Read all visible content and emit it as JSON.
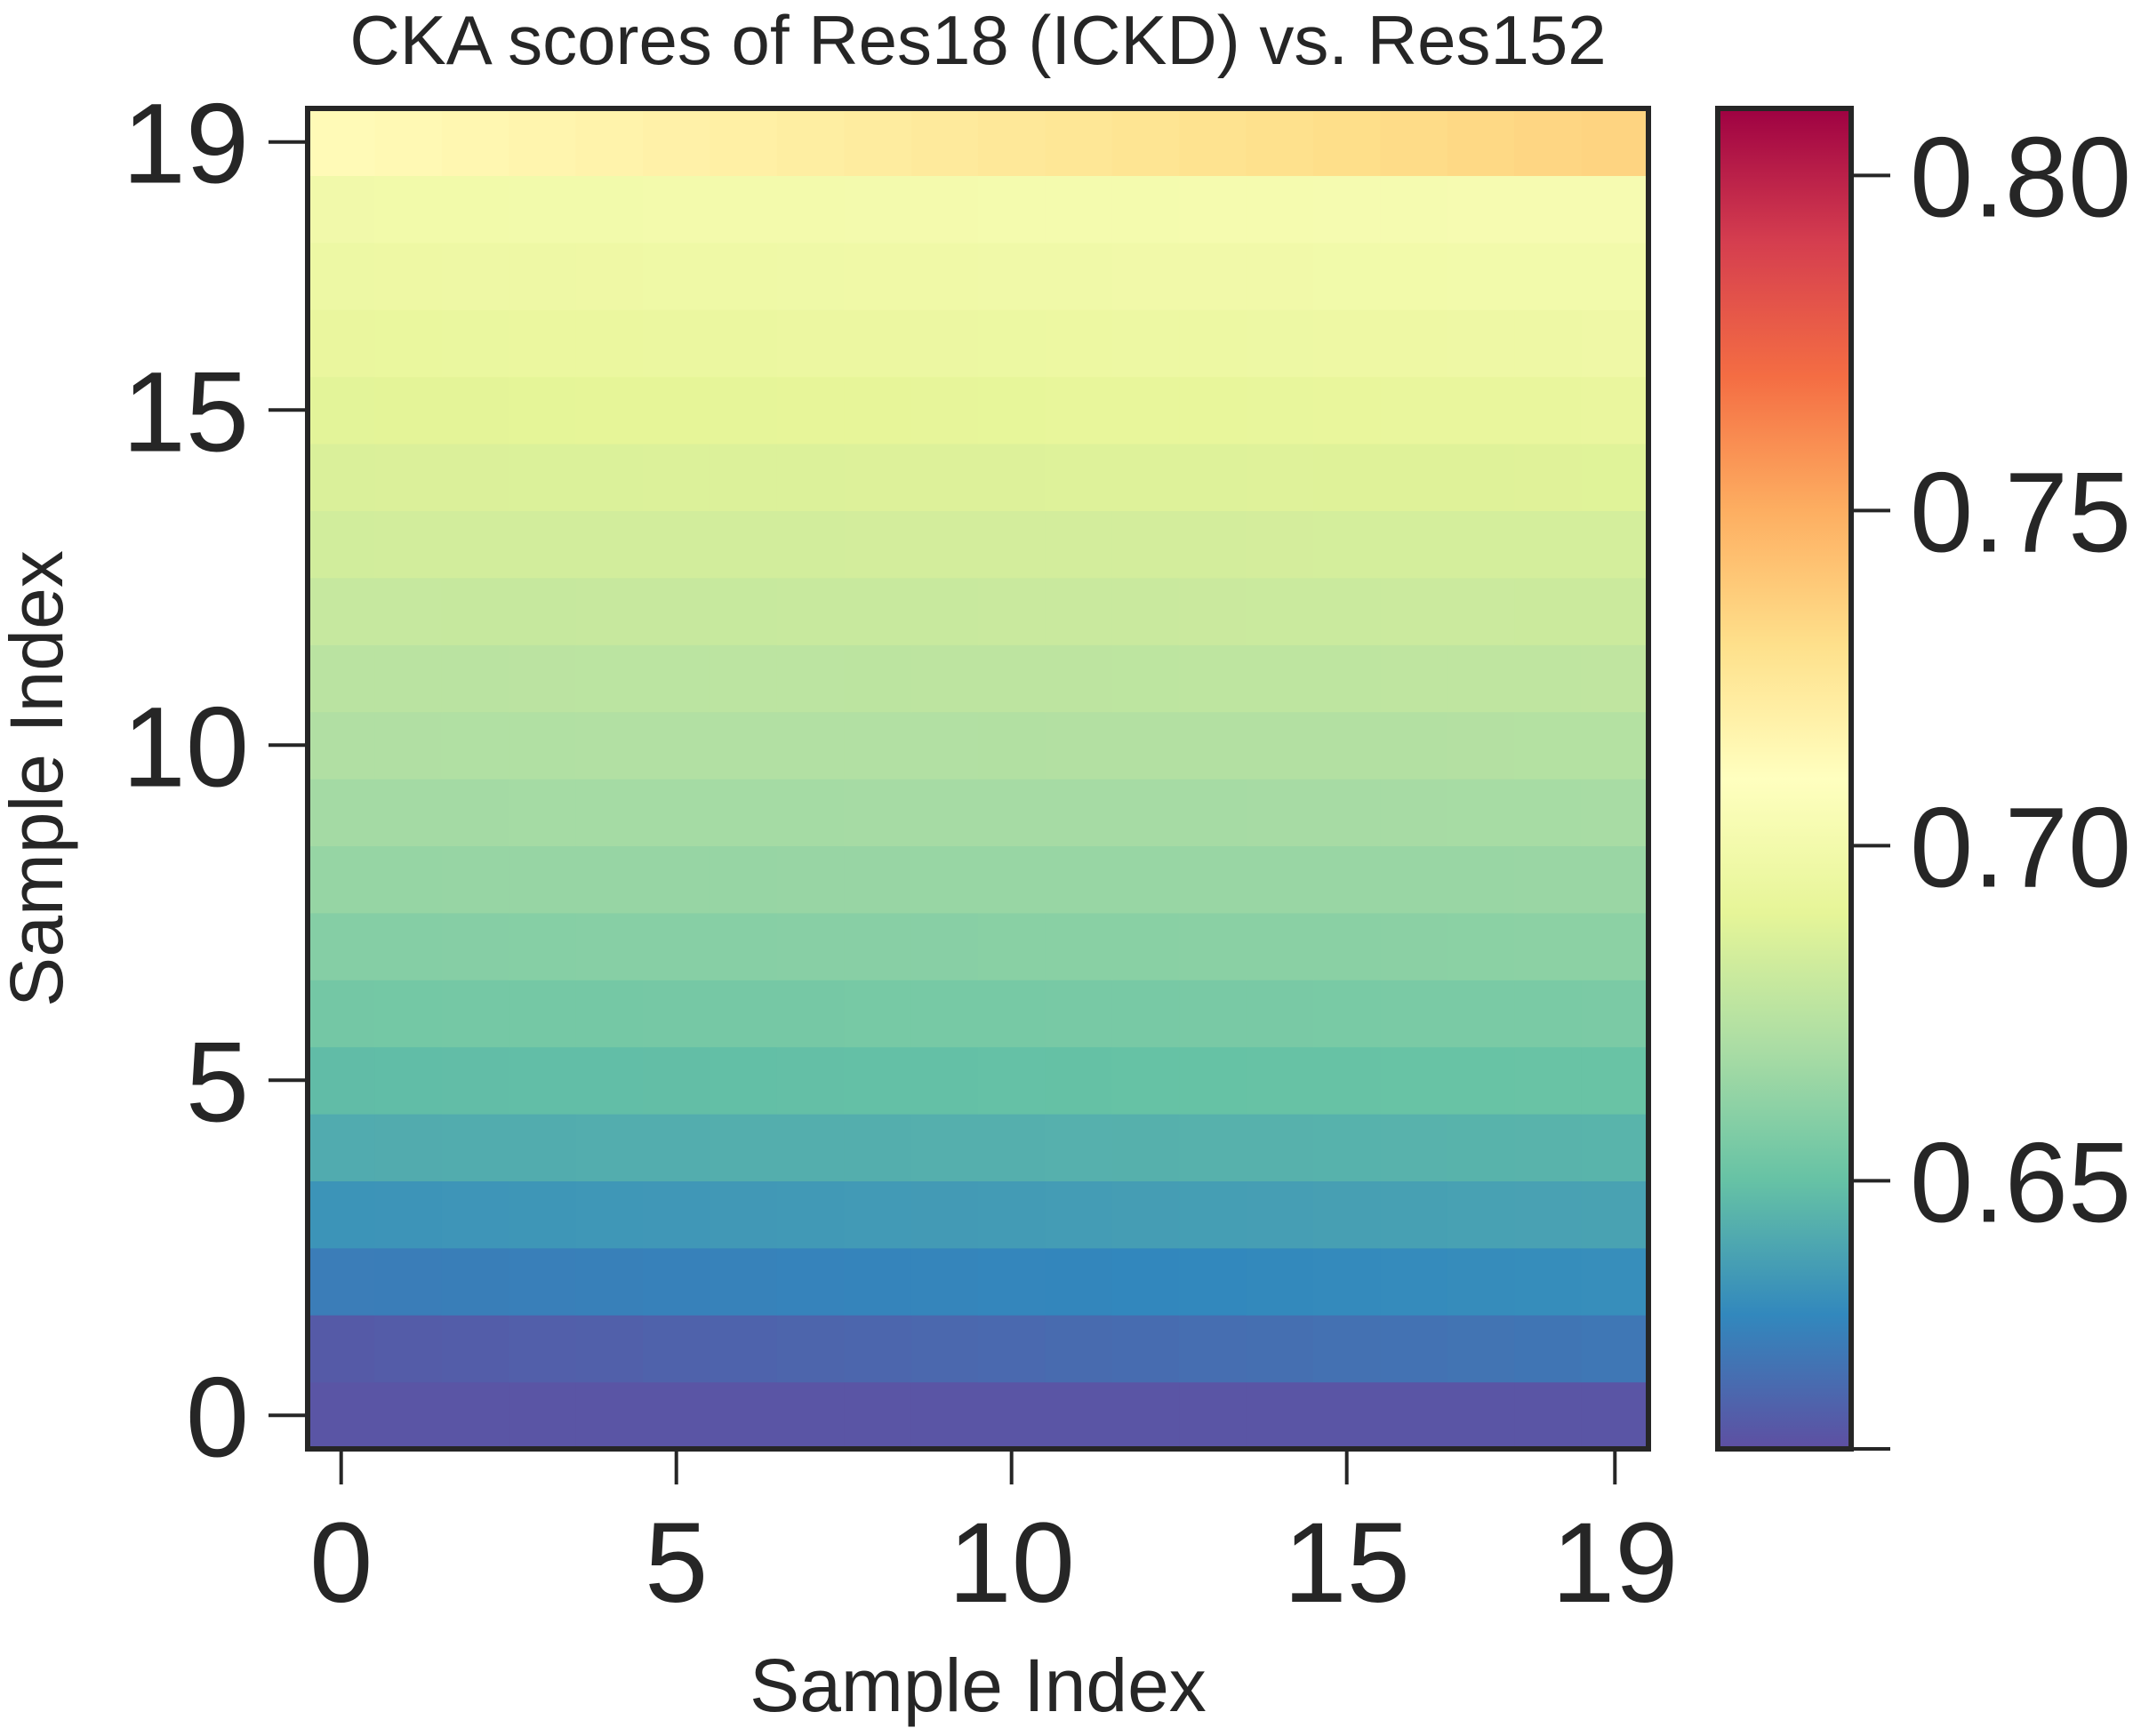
{
  "chart_data": {
    "type": "heatmap",
    "title": "CKA scores of Res18 (ICKD) vs. Res152",
    "xlabel": "Sample Index",
    "ylabel": "Sample Index",
    "x_ticks": [
      0,
      5,
      10,
      15,
      19
    ],
    "y_ticks": [
      0,
      5,
      10,
      15,
      19
    ],
    "colormap": "Spectral_r",
    "colorbar": {
      "min": 0.61,
      "max": 0.81,
      "ticks": [
        0.65,
        0.7,
        0.75,
        0.8
      ],
      "tick_labels": [
        "0.65",
        "0.70",
        "0.75",
        "0.80"
      ]
    },
    "grid": false,
    "rows": 20,
    "cols": 20,
    "row_values_col0": [
      0.612,
      0.614,
      0.626,
      0.634,
      0.642,
      0.648,
      0.654,
      0.659,
      0.664,
      0.668,
      0.672,
      0.675,
      0.679,
      0.683,
      0.686,
      0.689,
      0.693,
      0.696,
      0.699,
      0.713
    ],
    "row_values_col19": [
      0.612,
      0.624,
      0.632,
      0.639,
      0.645,
      0.651,
      0.656,
      0.661,
      0.665,
      0.669,
      0.673,
      0.677,
      0.681,
      0.684,
      0.688,
      0.693,
      0.697,
      0.7,
      0.703,
      0.735
    ]
  }
}
